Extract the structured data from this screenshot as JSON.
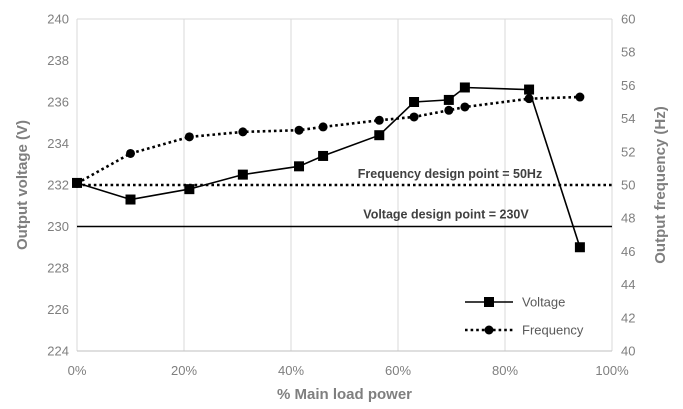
{
  "chart_data": {
    "type": "line",
    "xlabel": "% Main load power",
    "ylabel": "Output voltage (V)",
    "y2label": "Output frequency (Hz)",
    "xlim": [
      0,
      100
    ],
    "ylim": [
      224,
      240
    ],
    "y2lim": [
      40,
      60
    ],
    "x_ticks": [
      "0%",
      "20%",
      "40%",
      "60%",
      "80%",
      "100%"
    ],
    "y_ticks": [
      "224",
      "226",
      "228",
      "230",
      "232",
      "234",
      "236",
      "238",
      "240"
    ],
    "y2_ticks": [
      "40",
      "42",
      "44",
      "46",
      "48",
      "50",
      "52",
      "54",
      "56",
      "58",
      "60"
    ],
    "x_tick_values": [
      0,
      20,
      40,
      60,
      80,
      100
    ],
    "y_tick_values": [
      224,
      226,
      228,
      230,
      232,
      234,
      236,
      238,
      240
    ],
    "y2_tick_values": [
      40,
      42,
      44,
      46,
      48,
      50,
      52,
      54,
      56,
      58,
      60
    ],
    "grid": "vertical",
    "legend_position": "bottom-right",
    "series": [
      {
        "name": "Voltage",
        "axis": "left",
        "style": "solid",
        "marker": "square",
        "color": "#000000",
        "x": [
          0,
          10,
          21,
          31,
          41.5,
          46,
          56.5,
          63,
          69.5,
          72.5,
          84.5,
          94
        ],
        "y": [
          232.1,
          231.3,
          231.8,
          232.5,
          232.9,
          233.4,
          234.4,
          236.0,
          236.1,
          236.7,
          236.6,
          229.0
        ]
      },
      {
        "name": "Frequency",
        "axis": "right",
        "style": "dotted",
        "marker": "circle",
        "color": "#000000",
        "x": [
          0,
          10,
          21,
          31,
          41.5,
          46,
          56.5,
          63,
          69.5,
          72.5,
          84.5,
          94
        ],
        "y": [
          50.1,
          51.9,
          52.9,
          53.2,
          53.3,
          53.5,
          53.9,
          54.1,
          54.5,
          54.7,
          55.2,
          55.3
        ]
      }
    ],
    "reference_lines": [
      {
        "label": "Frequency design point = 50Hz",
        "axis": "right",
        "value": 50,
        "style": "dotted"
      },
      {
        "label": "Voltage design point = 230V",
        "axis": "left",
        "value": 230,
        "style": "solid"
      }
    ]
  }
}
